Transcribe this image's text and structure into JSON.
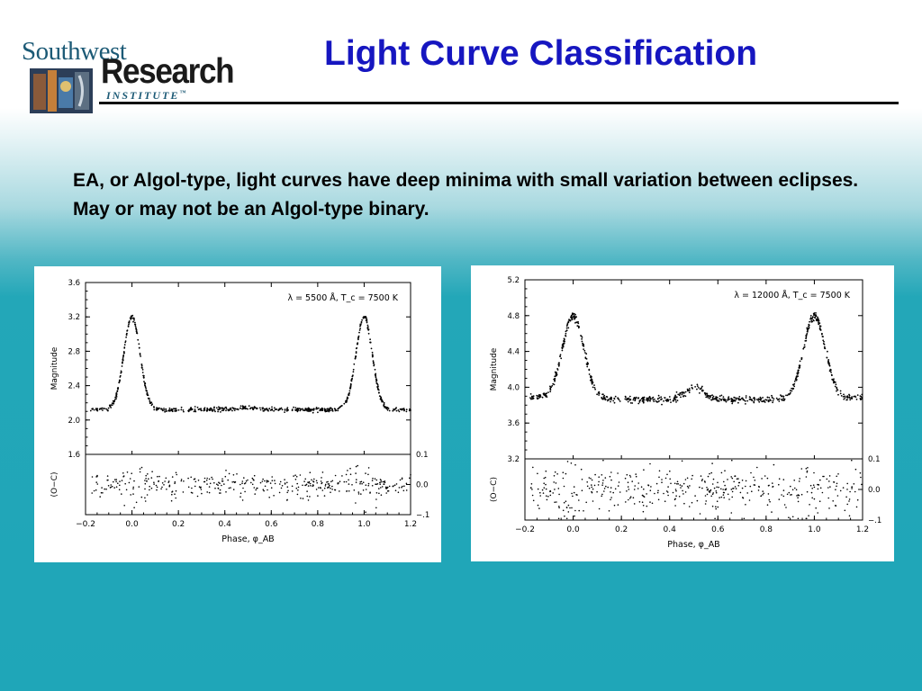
{
  "logo": {
    "line1": "Southwest",
    "line2": "Research",
    "line3": "INSTITUTE",
    "tm": "™"
  },
  "title": "Light Curve Classification",
  "description": "EA, or Algol-type, light curves have deep minima with small variation between eclipses. May or may not be an Algol-type binary.",
  "colors": {
    "title": "#1616c0",
    "background_bottom": "#1fa6b8"
  },
  "chart_data": [
    {
      "type": "scatter",
      "annotation": "λ = 5500 Å,  T_c = 7500 K",
      "xlabel": "Phase, φ_AB",
      "ylabel": "Magnitude",
      "residual_ylabel": "(O−C)",
      "xlim": [
        -0.2,
        1.2
      ],
      "ylim": [
        3.6,
        1.6
      ],
      "residual_ylim": [
        -0.1,
        0.1
      ],
      "x_ticks": [
        "−0.2",
        "0.0",
        "0.2",
        "0.4",
        "0.6",
        "0.8",
        "1.0",
        "1.2"
      ],
      "y_ticks": [
        "1.6",
        "2.0",
        "2.4",
        "2.8",
        "3.2",
        "3.6"
      ],
      "residual_ticks": [
        "0.1",
        "0.0",
        "−.1"
      ],
      "baseline": 2.12,
      "primary_depth": 3.2,
      "primary_width": 0.035,
      "secondary_depth": 2.14,
      "secondary_width": 0.05,
      "slope": 0.0,
      "noise": 0.012,
      "residual_noise": 0.02,
      "n_points": 560
    },
    {
      "type": "scatter",
      "annotation": "λ = 12000 Å,  T_c = 7500 K",
      "xlabel": "Phase, φ_AB",
      "ylabel": "Magnitude",
      "residual_ylabel": "(O−C)",
      "xlim": [
        -0.2,
        1.2
      ],
      "ylim": [
        5.2,
        3.2
      ],
      "residual_ylim": [
        -0.1,
        0.1
      ],
      "x_ticks": [
        "−0.2",
        "0.0",
        "0.2",
        "0.4",
        "0.6",
        "0.8",
        "1.0",
        "1.2"
      ],
      "y_ticks": [
        "3.2",
        "3.6",
        "4.0",
        "4.4",
        "4.8",
        "5.2"
      ],
      "residual_ticks": [
        "0.1",
        "0.0",
        "−.1"
      ],
      "baseline": 3.86,
      "primary_depth": 4.78,
      "primary_width": 0.045,
      "secondary_depth": 4.0,
      "secondary_width": 0.04,
      "slope": 0.08,
      "noise": 0.02,
      "residual_noise": 0.035,
      "n_points": 620
    }
  ]
}
